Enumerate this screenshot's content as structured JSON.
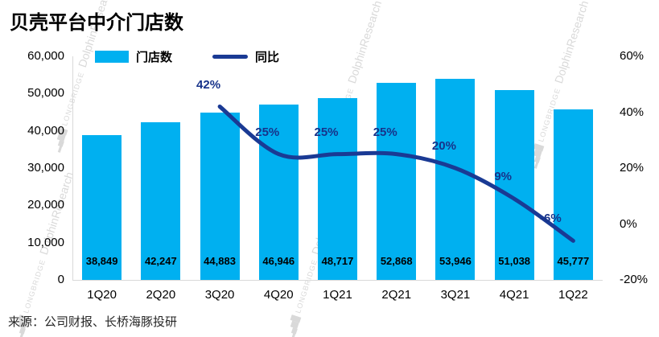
{
  "title": "贝壳平台中介门店数",
  "source": "来源：公司财报、长桥海豚投研",
  "watermark": {
    "brand": "LONGBRIDGE",
    "name": "DolphinResearch"
  },
  "legend": {
    "bar_label": "门店数",
    "line_label": "同比"
  },
  "colors": {
    "bar": "#00B0F0",
    "line": "#1A3A94",
    "bar_value_label": "#000000",
    "pct_label": "#17338A",
    "axis_text": "#000000"
  },
  "chart_data": {
    "type": "bar+line",
    "title": "贝壳平台中介门店数",
    "categories": [
      "1Q20",
      "2Q20",
      "3Q20",
      "4Q20",
      "1Q21",
      "2Q21",
      "3Q21",
      "4Q21",
      "1Q22"
    ],
    "series": [
      {
        "name": "门店数",
        "type": "bar",
        "axis": "left",
        "values": [
          38849,
          42247,
          44883,
          46946,
          48717,
          52868,
          53946,
          51038,
          45777
        ],
        "labels": [
          "38,849",
          "42,247",
          "44,883",
          "46,946",
          "48,717",
          "52,868",
          "53,946",
          "51,038",
          "45,777"
        ]
      },
      {
        "name": "同比",
        "type": "line",
        "axis": "right",
        "values": [
          null,
          null,
          42,
          25,
          25,
          25,
          20,
          9,
          -6
        ],
        "labels": [
          null,
          null,
          "42%",
          "25%",
          "25%",
          "25%",
          "20%",
          "9%",
          "-6%"
        ]
      }
    ],
    "left_axis": {
      "min": 0,
      "max": 60000,
      "tick_values": [
        60000,
        50000,
        40000,
        30000,
        20000,
        10000,
        0
      ],
      "tick_labels": [
        "60,000",
        "50,000",
        "40,000",
        "30,000",
        "20,000",
        "10,000",
        "0"
      ]
    },
    "right_axis": {
      "min": -20,
      "max": 60,
      "tick_values": [
        60,
        40,
        20,
        0,
        -20
      ],
      "tick_labels": [
        "60%",
        "40%",
        "20%",
        "0%",
        "-20%"
      ]
    },
    "grid": false,
    "legend_position": "top"
  }
}
